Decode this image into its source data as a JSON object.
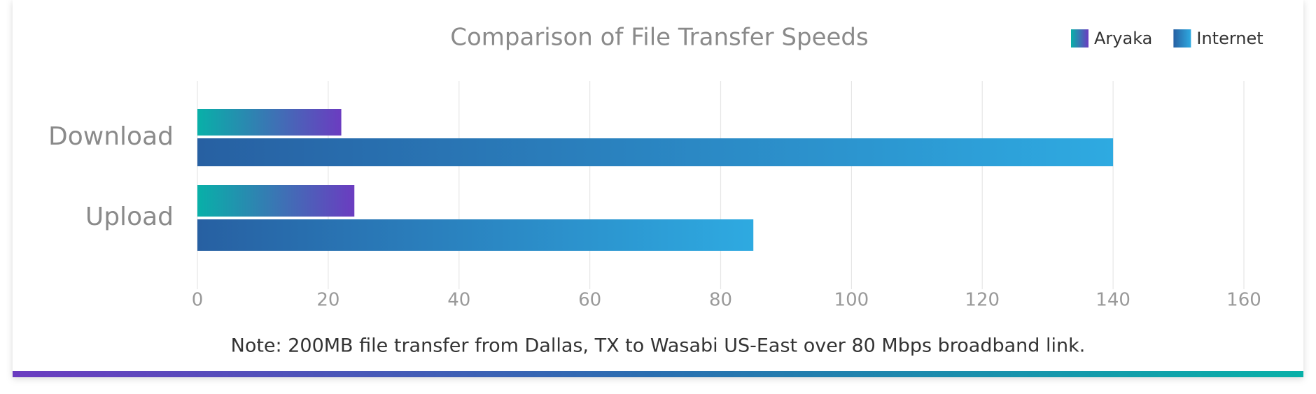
{
  "chart_data": {
    "type": "hbar",
    "title": "Comparison of File Transfer Speeds",
    "categories": [
      "Download",
      "Upload"
    ],
    "series": [
      {
        "name": "Aryaka",
        "color": [
          "#08b0a8",
          "#6b3cc0"
        ],
        "values": [
          22,
          24
        ]
      },
      {
        "name": "Internet",
        "color": [
          "#2760a2",
          "#2eaae1"
        ],
        "values": [
          140,
          85
        ]
      }
    ],
    "xlim": [
      0,
      160
    ],
    "xticks": [
      0,
      20,
      40,
      60,
      80,
      100,
      120,
      140,
      160
    ],
    "grid": true,
    "legend": "top-right",
    "note": "Note: 200MB file transfer from Dallas, TX to Wasabi US-East over 80 Mbps broadband link."
  }
}
